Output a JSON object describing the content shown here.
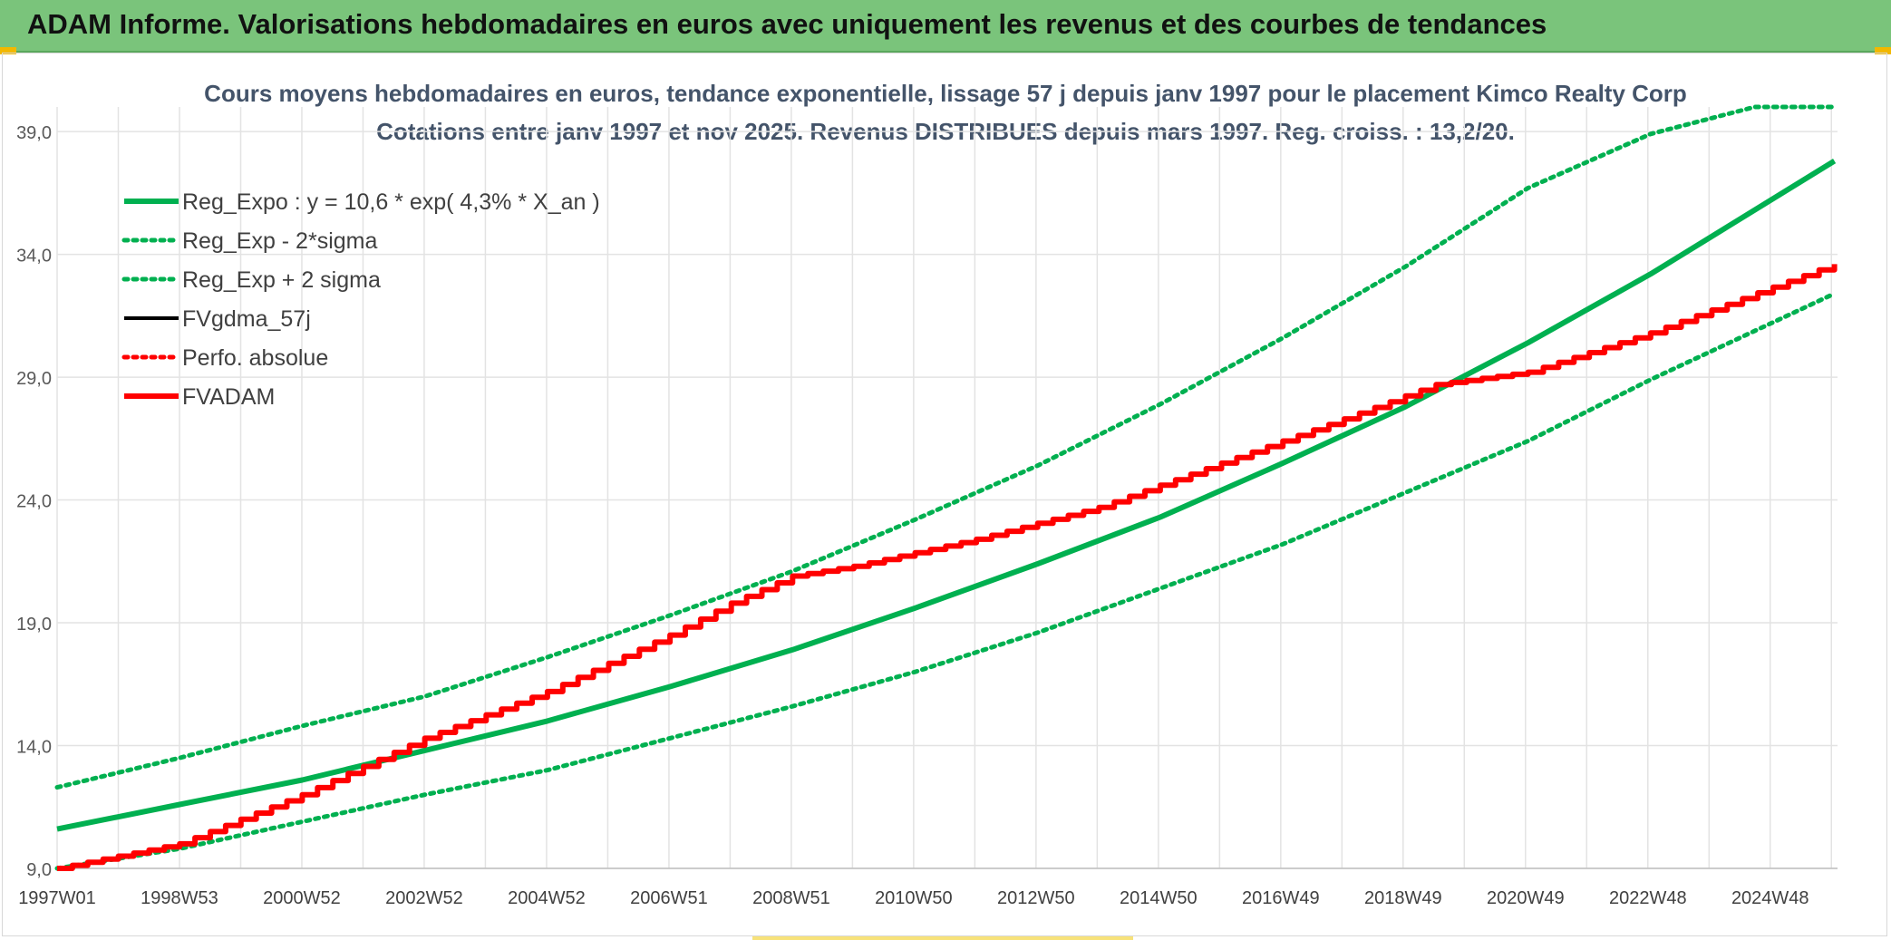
{
  "header": {
    "title": "ADAM Informe. Valorisations hebdomadaires en euros avec uniquement les revenus et des courbes de tendances"
  },
  "colors": {
    "banner": "#7ac47b",
    "green": "#00b050",
    "red": "#ff0000",
    "black": "#000000",
    "grid": "#e3e3e3",
    "title": "#44546a"
  },
  "chart_data": {
    "type": "line",
    "title": "Cours moyens hebdomadaires en euros, tendance exponentielle, lissage 57 j depuis janv 1997 pour le placement Kimco Realty Corp",
    "subtitle": "Cotations entre janv 1997 et nov 2025. Revenus DISTRIBUES depuis mars 1997. Reg. croiss. : 13,2/20.",
    "xlabel": "",
    "ylabel": "",
    "x_ticks": [
      "1997W01",
      "1998W53",
      "2000W52",
      "2002W52",
      "2004W52",
      "2006W51",
      "2008W51",
      "2010W50",
      "2012W50",
      "2014W50",
      "2016W49",
      "2018W49",
      "2020W49",
      "2022W48",
      "2024W48"
    ],
    "x_range": [
      1997.0,
      2026.05
    ],
    "ylim": [
      9.0,
      40.0
    ],
    "y_ticks": [
      "9,0",
      "14,0",
      "19,0",
      "24,0",
      "29,0",
      "34,0",
      "39,0"
    ],
    "y_tick_values": [
      9,
      14,
      19,
      24,
      29,
      34,
      39
    ],
    "grid": true,
    "legend_position": "top-left",
    "series": [
      {
        "name": "Reg_Expo : y = 10,6 * exp( 4,3% *  X_an )",
        "style": "solid-thick",
        "color": "#00b050",
        "x": [
          1997,
          1999,
          2001,
          2003,
          2005,
          2007,
          2009,
          2011,
          2013,
          2015,
          2017,
          2019,
          2021,
          2023,
          2026
        ],
        "values": [
          10.6,
          11.6,
          12.6,
          13.8,
          15.0,
          16.4,
          17.9,
          19.6,
          21.4,
          23.3,
          25.5,
          27.8,
          30.4,
          33.2,
          37.8
        ]
      },
      {
        "name": "Reg_Exp - 2*sigma",
        "style": "dotted",
        "color": "#00b050",
        "x": [
          1997,
          1999,
          2001,
          2003,
          2005,
          2007,
          2009,
          2011,
          2013,
          2015,
          2017,
          2019,
          2021,
          2023,
          2026
        ],
        "values": [
          9.0,
          9.8,
          10.9,
          12.0,
          13.0,
          14.3,
          15.6,
          17.0,
          18.6,
          20.4,
          22.2,
          24.3,
          26.4,
          28.9,
          32.4
        ]
      },
      {
        "name": "Reg_Exp + 2 sigma",
        "style": "dotted",
        "color": "#00b050",
        "x": [
          1997,
          1999,
          2001,
          2003,
          2005,
          2007,
          2009,
          2011,
          2013,
          2015,
          2017,
          2019,
          2021,
          2023,
          2024.7,
          2026
        ],
        "values": [
          12.3,
          13.5,
          14.8,
          16.0,
          17.6,
          19.3,
          21.1,
          23.2,
          25.4,
          27.9,
          30.6,
          33.5,
          36.7,
          38.9,
          40.0,
          40.0
        ]
      },
      {
        "name": "FVgdma_57j",
        "style": "solid",
        "color": "#000000",
        "x": [],
        "values": []
      },
      {
        "name": "Perfo. absolue",
        "style": "dotted",
        "color": "#ff0000",
        "x": [],
        "values": []
      },
      {
        "name": "FVADAM",
        "style": "solid-thick",
        "color": "#ff0000",
        "x": [
          1997,
          1999,
          2001,
          2003,
          2005,
          2007,
          2008,
          2009,
          2010,
          2012,
          2014,
          2016,
          2018,
          2019.5,
          2021,
          2023,
          2026
        ],
        "values": [
          9.0,
          10.0,
          12.0,
          14.3,
          16.2,
          18.5,
          19.8,
          20.9,
          21.3,
          22.4,
          23.7,
          25.5,
          27.3,
          28.7,
          29.2,
          30.8,
          33.6
        ]
      }
    ]
  }
}
